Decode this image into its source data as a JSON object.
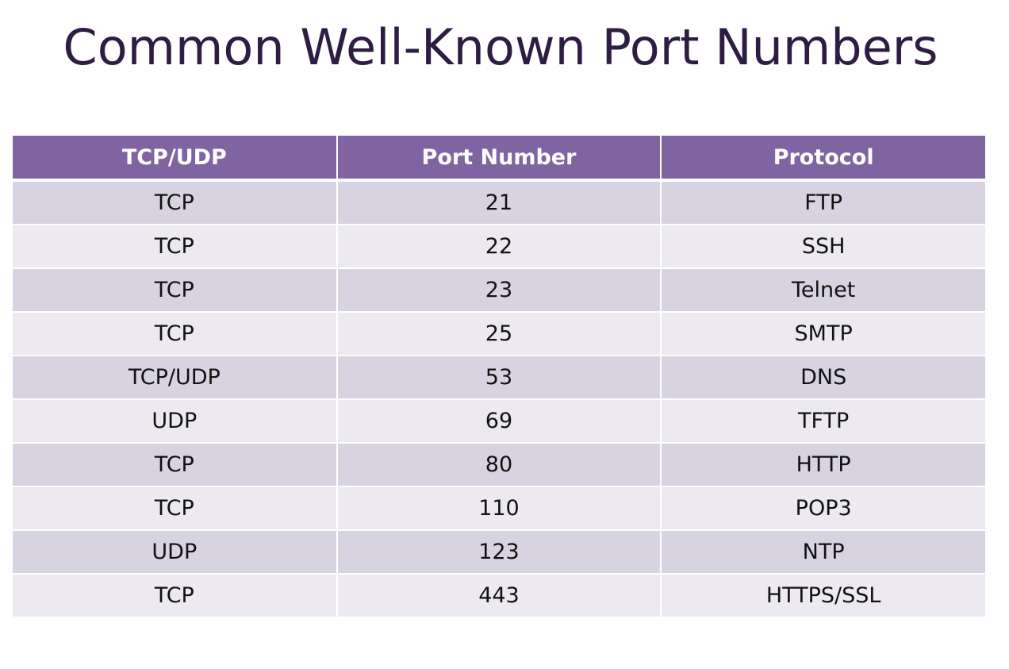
{
  "title": "Common Well-Known Port Numbers",
  "table": {
    "headers": [
      "TCP/UDP",
      "Port Number",
      "Protocol"
    ],
    "rows": [
      [
        "TCP",
        "21",
        "FTP"
      ],
      [
        "TCP",
        "22",
        "SSH"
      ],
      [
        "TCP",
        "23",
        "Telnet"
      ],
      [
        "TCP",
        "25",
        "SMTP"
      ],
      [
        "TCP/UDP",
        "53",
        "DNS"
      ],
      [
        "UDP",
        "69",
        "TFTP"
      ],
      [
        "TCP",
        "80",
        "HTTP"
      ],
      [
        "TCP",
        "110",
        "POP3"
      ],
      [
        "UDP",
        "123",
        "NTP"
      ],
      [
        "TCP",
        "443",
        "HTTPS/SSL"
      ]
    ]
  },
  "colors": {
    "header_bg": "#8064a2",
    "row_odd": "#d8d3e1",
    "row_even": "#ece9f1",
    "title": "#2e1d43"
  }
}
